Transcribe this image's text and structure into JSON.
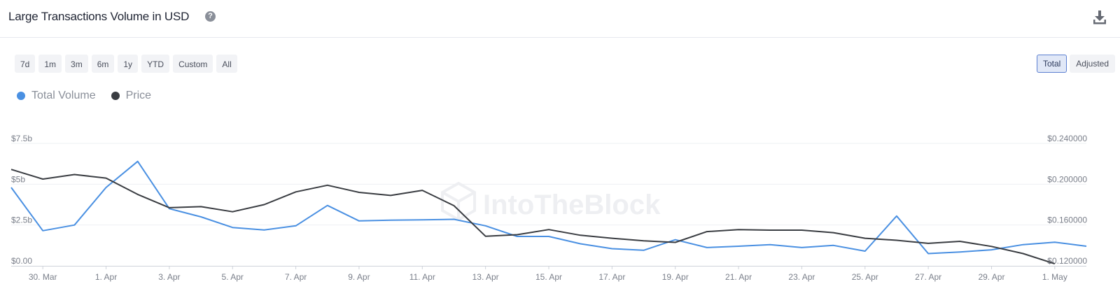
{
  "header": {
    "title": "Large Transactions Volume in USD",
    "help_icon": "question-circle-icon",
    "download_icon": "download-icon"
  },
  "range_buttons": [
    {
      "label": "7d"
    },
    {
      "label": "1m"
    },
    {
      "label": "3m"
    },
    {
      "label": "6m"
    },
    {
      "label": "1y"
    },
    {
      "label": "YTD"
    },
    {
      "label": "Custom"
    },
    {
      "label": "All"
    }
  ],
  "mode_buttons": [
    {
      "label": "Total",
      "active": true
    },
    {
      "label": "Adjusted",
      "active": false
    }
  ],
  "legend": [
    {
      "label": "Total Volume",
      "color": "#4a90e2"
    },
    {
      "label": "Price",
      "color": "#3a3d42"
    }
  ],
  "watermark": "IntoTheBlock",
  "chart_data": {
    "type": "line",
    "x": [
      "29. Mar",
      "30. Mar",
      "31. Mar",
      "1. Apr",
      "2. Apr",
      "3. Apr",
      "4. Apr",
      "5. Apr",
      "6. Apr",
      "7. Apr",
      "8. Apr",
      "9. Apr",
      "10. Apr",
      "11. Apr",
      "12. Apr",
      "13. Apr",
      "14. Apr",
      "15. Apr",
      "16. Apr",
      "17. Apr",
      "18. Apr",
      "19. Apr",
      "20. Apr",
      "21. Apr",
      "22. Apr",
      "23. Apr",
      "24. Apr",
      "25. Apr",
      "26. Apr",
      "27. Apr",
      "28. Apr",
      "29. Apr",
      "30. Apr",
      "1. May",
      "2. May"
    ],
    "x_tick_labels": [
      "30. Mar",
      "1. Apr",
      "3. Apr",
      "5. Apr",
      "7. Apr",
      "9. Apr",
      "11. Apr",
      "13. Apr",
      "15. Apr",
      "17. Apr",
      "19. Apr",
      "21. Apr",
      "23. Apr",
      "25. Apr",
      "27. Apr",
      "29. Apr",
      "1. May"
    ],
    "series": [
      {
        "name": "Total Volume",
        "axis": "left",
        "color": "#4a90e2",
        "values": [
          4.8,
          2.15,
          2.5,
          4.8,
          6.4,
          3.5,
          3.0,
          2.35,
          2.2,
          2.45,
          3.7,
          2.75,
          2.8,
          2.82,
          2.85,
          2.45,
          1.8,
          1.8,
          1.35,
          1.05,
          0.95,
          1.6,
          1.12,
          1.2,
          1.3,
          1.12,
          1.25,
          0.9,
          3.05,
          0.75,
          0.85,
          0.98,
          1.3,
          1.45,
          1.2
        ]
      },
      {
        "name": "Price",
        "axis": "right",
        "color": "#3a3d42",
        "values": [
          0.2145,
          0.205,
          0.2095,
          0.206,
          0.19,
          0.177,
          0.178,
          0.173,
          0.18,
          0.1925,
          0.199,
          0.192,
          0.189,
          0.194,
          0.179,
          0.149,
          0.1505,
          0.1555,
          0.15,
          0.147,
          0.1445,
          0.143,
          0.1535,
          0.1555,
          0.155,
          0.155,
          0.1525,
          0.147,
          0.145,
          0.142,
          0.144,
          0.139,
          0.132,
          0.122,
          null
        ]
      }
    ],
    "y_left": {
      "ticks": [
        "$0.00",
        "$2.5b",
        "$5b",
        "$7.5b"
      ],
      "tick_values": [
        0,
        2.5,
        5,
        7.5
      ],
      "range": [
        0,
        7.5
      ]
    },
    "y_right": {
      "ticks": [
        "$0.120000",
        "$0.160000",
        "$0.200000",
        "$0.240000"
      ],
      "tick_values": [
        0.12,
        0.16,
        0.2,
        0.24
      ],
      "range": [
        0.12,
        0.24
      ]
    },
    "grid": true,
    "legend_position": "top-left"
  }
}
